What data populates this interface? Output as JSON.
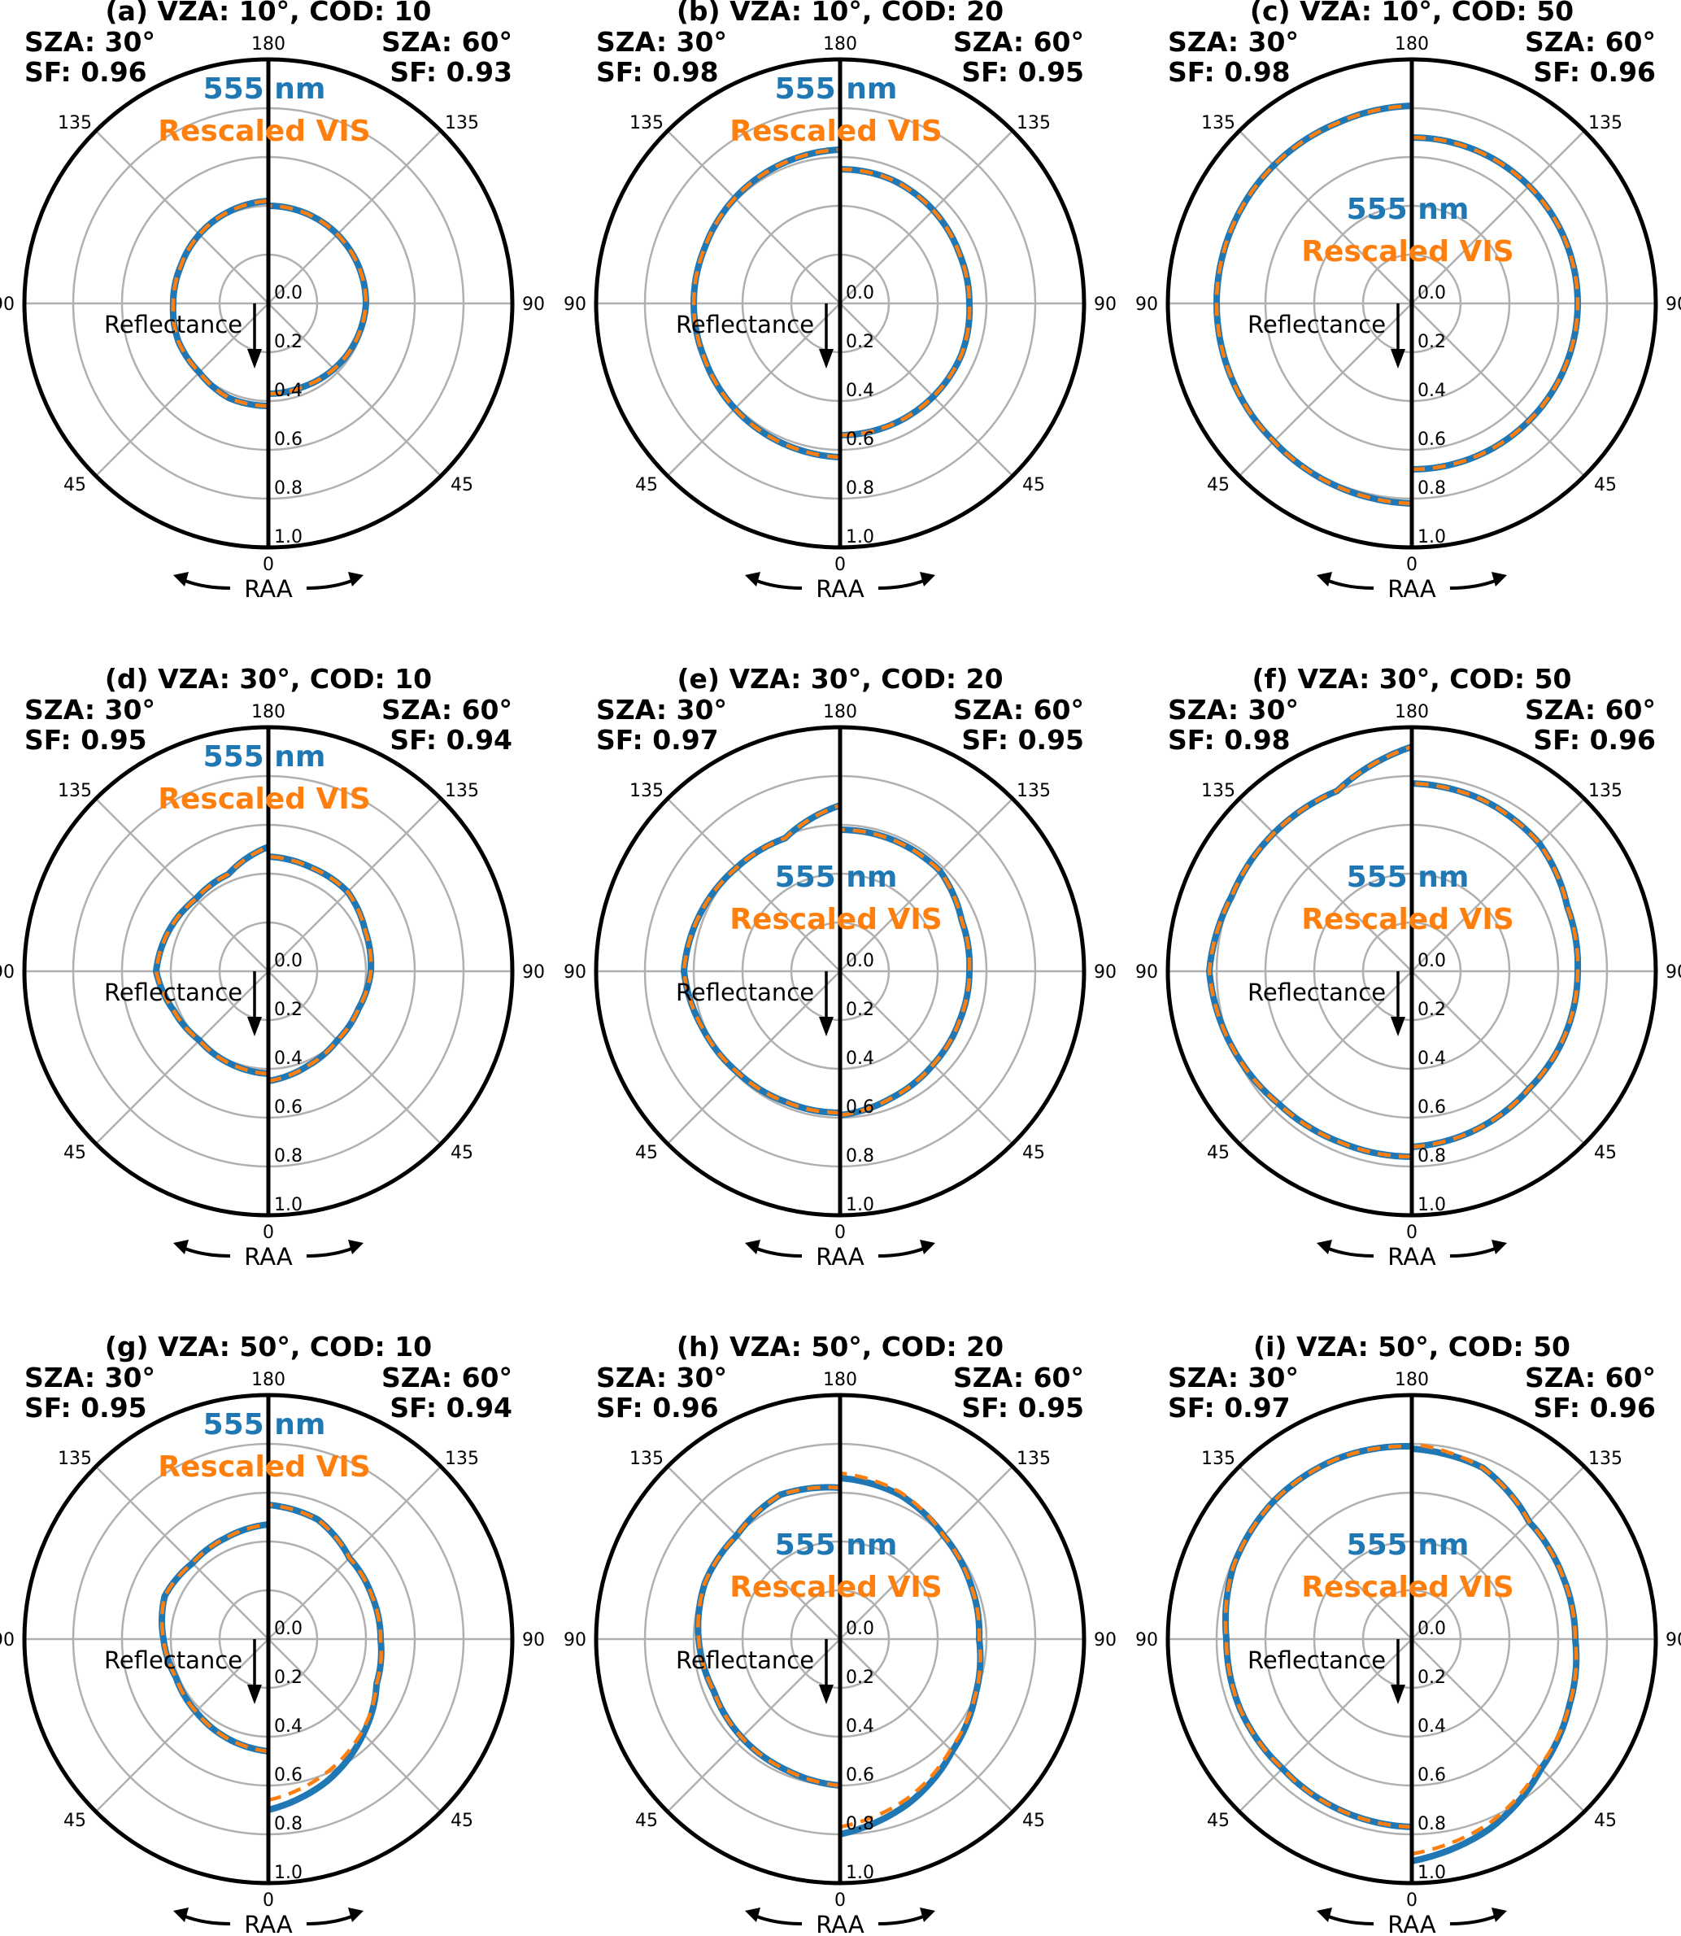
{
  "colors": {
    "blue": "#1f77b4",
    "orange": "#ff7f0e",
    "grid": "#b0b0b0",
    "frame": "#000000"
  },
  "labels": {
    "series_blue": "555 nm",
    "series_orange": "Rescaled VIS",
    "reflectance": "Reflectance",
    "raa": "RAA",
    "angle_ticks": [
      "0",
      "45",
      "90",
      "135",
      "180"
    ],
    "radial_ticks": [
      "0.0",
      "0.2",
      "0.4",
      "0.6",
      "0.8",
      "1.0"
    ]
  },
  "chart_data": [
    {
      "type": "polar",
      "title": "(a) VZA: 10°, COD: 10",
      "left": {
        "sza": "SZA: 30°",
        "sf": "SF: 0.96",
        "r": [
          0.42,
          0.42,
          0.4,
          0.4,
          0.39,
          0.39,
          0.4,
          0.41,
          0.42
        ],
        "r2": [
          0.42,
          0.42,
          0.4,
          0.4,
          0.39,
          0.39,
          0.4,
          0.41,
          0.42
        ]
      },
      "right": {
        "sza": "SZA: 60°",
        "sf": "SF: 0.93",
        "r": [
          0.37,
          0.37,
          0.38,
          0.39,
          0.4,
          0.4,
          0.4,
          0.4,
          0.4
        ],
        "r2": [
          0.37,
          0.37,
          0.38,
          0.39,
          0.4,
          0.4,
          0.4,
          0.4,
          0.4
        ]
      },
      "ylim": [
        0,
        1
      ],
      "label_pos": "top"
    },
    {
      "type": "polar",
      "title": "(b) VZA: 10°, COD: 20",
      "left": {
        "sza": "SZA: 30°",
        "sf": "SF: 0.98",
        "r": [
          0.63,
          0.62,
          0.61,
          0.6,
          0.6,
          0.6,
          0.61,
          0.62,
          0.63
        ],
        "r2": [
          0.63,
          0.62,
          0.61,
          0.6,
          0.6,
          0.6,
          0.61,
          0.62,
          0.63
        ]
      },
      "right": {
        "sza": "SZA: 60°",
        "sf": "SF: 0.95",
        "r": [
          0.54,
          0.54,
          0.54,
          0.54,
          0.53,
          0.53,
          0.54,
          0.55,
          0.55
        ],
        "r2": [
          0.54,
          0.54,
          0.54,
          0.54,
          0.53,
          0.53,
          0.54,
          0.55,
          0.55
        ]
      },
      "ylim": [
        0,
        1
      ],
      "label_pos": "top"
    },
    {
      "type": "polar",
      "title": "(c) VZA: 10°, COD: 50",
      "left": {
        "sza": "SZA: 30°",
        "sf": "SF: 0.98",
        "r": [
          0.82,
          0.81,
          0.8,
          0.8,
          0.8,
          0.8,
          0.8,
          0.8,
          0.81
        ],
        "r2": [
          0.82,
          0.81,
          0.8,
          0.8,
          0.8,
          0.8,
          0.8,
          0.8,
          0.81
        ]
      },
      "right": {
        "sza": "SZA: 60°",
        "sf": "SF: 0.96",
        "r": [
          0.68,
          0.68,
          0.68,
          0.68,
          0.68,
          0.68,
          0.68,
          0.68,
          0.68
        ],
        "r2": [
          0.68,
          0.68,
          0.68,
          0.68,
          0.68,
          0.68,
          0.68,
          0.68,
          0.68
        ]
      },
      "ylim": [
        0,
        1
      ],
      "label_pos": "middle"
    },
    {
      "type": "polar",
      "title": "(d) VZA: 30°, COD: 10",
      "left": {
        "sza": "SZA: 30°",
        "sf": "SF: 0.95",
        "r": [
          0.42,
          0.41,
          0.4,
          0.42,
          0.46,
          0.44,
          0.42,
          0.43,
          0.51
        ],
        "r2": [
          0.42,
          0.41,
          0.4,
          0.42,
          0.46,
          0.44,
          0.42,
          0.43,
          0.51
        ]
      },
      "right": {
        "sza": "SZA: 60°",
        "sf": "SF: 0.94",
        "r": [
          0.45,
          0.42,
          0.4,
          0.4,
          0.42,
          0.43,
          0.46,
          0.46,
          0.47
        ],
        "r2": [
          0.45,
          0.42,
          0.4,
          0.4,
          0.42,
          0.43,
          0.46,
          0.46,
          0.47
        ]
      },
      "ylim": [
        0,
        1
      ],
      "label_pos": "top"
    },
    {
      "type": "polar",
      "title": "(e) VZA: 30°, COD: 20",
      "left": {
        "sza": "SZA: 30°",
        "sf": "SF: 0.97",
        "r": [
          0.58,
          0.58,
          0.59,
          0.61,
          0.64,
          0.62,
          0.6,
          0.59,
          0.68
        ],
        "r2": [
          0.58,
          0.58,
          0.59,
          0.61,
          0.64,
          0.62,
          0.6,
          0.59,
          0.68
        ]
      },
      "right": {
        "sza": "SZA: 60°",
        "sf": "SF: 0.95",
        "r": [
          0.59,
          0.56,
          0.54,
          0.53,
          0.53,
          0.54,
          0.58,
          0.58,
          0.58
        ],
        "r2": [
          0.59,
          0.56,
          0.54,
          0.53,
          0.53,
          0.54,
          0.58,
          0.58,
          0.58
        ]
      },
      "ylim": [
        0,
        1
      ],
      "label_pos": "middle"
    },
    {
      "type": "polar",
      "title": "(f) VZA: 30°, COD: 50",
      "left": {
        "sza": "SZA: 30°",
        "sf": "SF: 0.98",
        "r": [
          0.76,
          0.76,
          0.77,
          0.8,
          0.83,
          0.8,
          0.8,
          0.8,
          0.92
        ],
        "r2": [
          0.76,
          0.76,
          0.77,
          0.8,
          0.83,
          0.8,
          0.8,
          0.8,
          0.92
        ]
      },
      "right": {
        "sza": "SZA: 60°",
        "sf": "SF: 0.96",
        "r": [
          0.72,
          0.7,
          0.68,
          0.68,
          0.68,
          0.69,
          0.74,
          0.76,
          0.77
        ],
        "r2": [
          0.72,
          0.7,
          0.68,
          0.68,
          0.68,
          0.69,
          0.74,
          0.76,
          0.77
        ]
      },
      "ylim": [
        0,
        1
      ],
      "label_pos": "middle"
    },
    {
      "type": "polar",
      "title": "(g) VZA: 50°, COD: 10",
      "left": {
        "sza": "SZA: 30°",
        "sf": "SF: 0.95",
        "r": [
          0.46,
          0.44,
          0.42,
          0.41,
          0.43,
          0.46,
          0.44,
          0.45,
          0.47
        ],
        "r2": [
          0.46,
          0.44,
          0.42,
          0.41,
          0.43,
          0.46,
          0.44,
          0.45,
          0.47
        ]
      },
      "right": {
        "sza": "SZA: 60°",
        "sf": "SF: 0.94",
        "r": [
          0.7,
          0.63,
          0.55,
          0.48,
          0.46,
          0.46,
          0.47,
          0.53,
          0.55
        ],
        "r2": [
          0.66,
          0.6,
          0.54,
          0.48,
          0.46,
          0.46,
          0.47,
          0.53,
          0.55
        ]
      },
      "ylim": [
        0,
        1
      ],
      "label_pos": "top"
    },
    {
      "type": "polar",
      "title": "(h) VZA: 50°, COD: 20",
      "left": {
        "sza": "SZA: 30°",
        "sf": "SF: 0.96",
        "r": [
          0.6,
          0.58,
          0.57,
          0.56,
          0.58,
          0.6,
          0.6,
          0.64,
          0.62
        ],
        "r2": [
          0.6,
          0.58,
          0.57,
          0.56,
          0.58,
          0.6,
          0.6,
          0.64,
          0.62
        ]
      },
      "right": {
        "sza": "SZA: 60°",
        "sf": "SF: 0.95",
        "r": [
          0.8,
          0.73,
          0.65,
          0.6,
          0.57,
          0.58,
          0.6,
          0.64,
          0.66
        ],
        "r2": [
          0.77,
          0.71,
          0.64,
          0.6,
          0.57,
          0.58,
          0.6,
          0.65,
          0.68
        ]
      },
      "ylim": [
        0,
        1
      ],
      "label_pos": "middle"
    },
    {
      "type": "polar",
      "title": "(i) VZA: 50°, COD: 50",
      "left": {
        "sza": "SZA: 30°",
        "sf": "SF: 0.97",
        "r": [
          0.77,
          0.76,
          0.75,
          0.76,
          0.76,
          0.79,
          0.8,
          0.8,
          0.79
        ],
        "r2": [
          0.77,
          0.76,
          0.75,
          0.76,
          0.76,
          0.79,
          0.8,
          0.8,
          0.79
        ]
      },
      "right": {
        "sza": "SZA: 60°",
        "sf": "SF: 0.96",
        "r": [
          0.91,
          0.84,
          0.75,
          0.7,
          0.67,
          0.67,
          0.68,
          0.76,
          0.78
        ],
        "r2": [
          0.88,
          0.82,
          0.74,
          0.7,
          0.67,
          0.67,
          0.68,
          0.76,
          0.8
        ]
      },
      "ylim": [
        0,
        1
      ],
      "label_pos": "middle"
    }
  ]
}
